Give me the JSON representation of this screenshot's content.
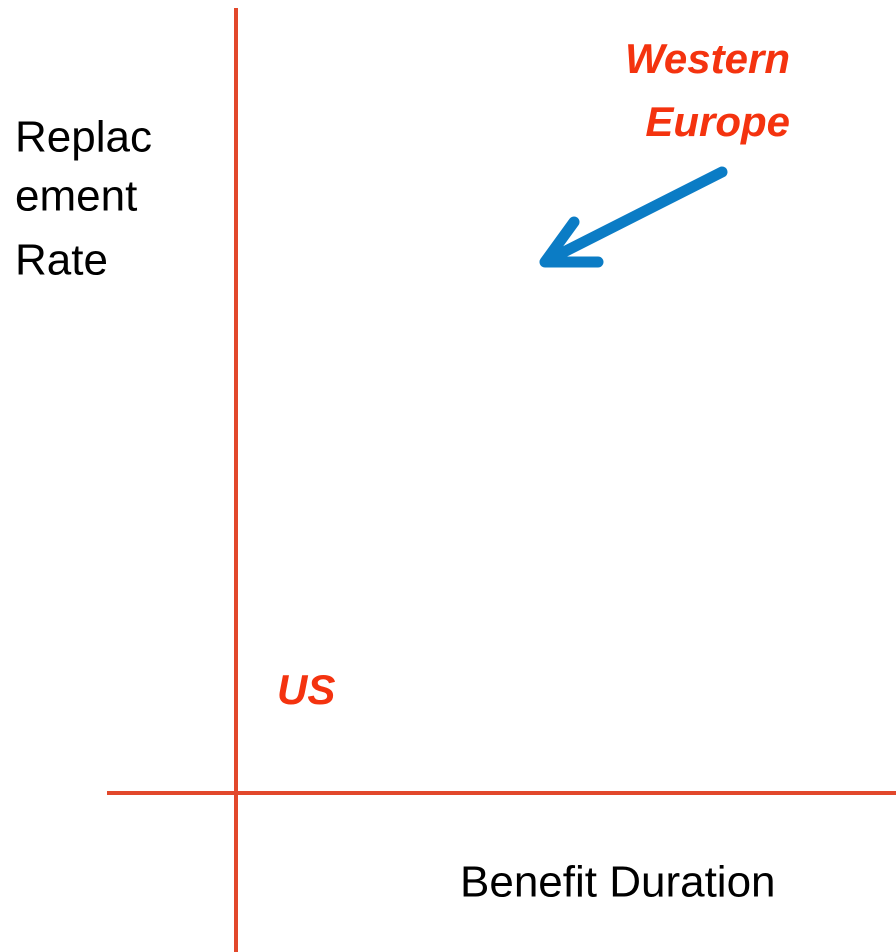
{
  "axes": {
    "y_label": [
      "Replac",
      "ement",
      "Rate"
    ],
    "x_label": "Benefit Duration"
  },
  "annotations": [
    {
      "lines": [
        "Western",
        "Europe"
      ]
    },
    {
      "text": "US"
    }
  ]
}
